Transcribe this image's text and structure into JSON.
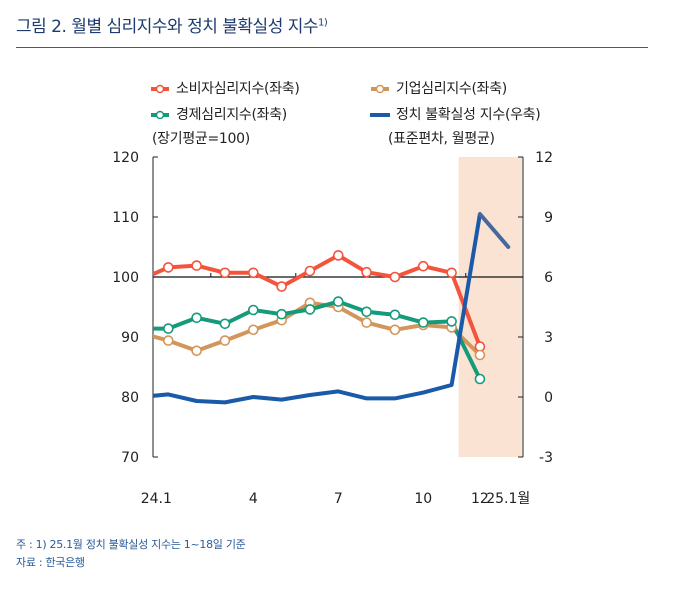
{
  "title": "그림 2. 월별 심리지수와 정치 불확실성 지수",
  "title_sup": "1)",
  "notes": {
    "note": "주 : 1) 25.1월 정치 불확실성 지수는 1~18일 기준",
    "source": "자료 : 한국은행"
  },
  "legend": {
    "left_unit": "(장기평균=100)",
    "right_unit": "(표준편차, 월평균)"
  },
  "chart_data": {
    "type": "line",
    "title": "월별 심리지수와 정치 불확실성 지수",
    "categories": [
      "23.12",
      "24.1",
      "24.2",
      "24.3",
      "24.4",
      "24.5",
      "24.6",
      "24.7",
      "24.8",
      "24.9",
      "24.10",
      "24.11",
      "24.12",
      "25.1"
    ],
    "x_tick_labels": [
      {
        "category": "24.1",
        "label": "24.1"
      },
      {
        "category": "24.4",
        "label": "4"
      },
      {
        "category": "24.7",
        "label": "7"
      },
      {
        "category": "24.10",
        "label": "10"
      },
      {
        "category": "24.12",
        "label": "12"
      },
      {
        "category": "25.1",
        "label": "25.1월"
      }
    ],
    "y_left": {
      "range": [
        70,
        120
      ],
      "ticks": [
        70,
        80,
        90,
        100,
        110,
        120
      ],
      "reference_line": 100
    },
    "y_right": {
      "range": [
        -3,
        12
      ],
      "ticks": [
        -3,
        0,
        3,
        6,
        9,
        12
      ]
    },
    "shaded_range": [
      "24.12",
      "25.1"
    ],
    "shade_color": "#fbe3d3",
    "series": [
      {
        "name": "소비자심리지수(좌축)",
        "axis": "left",
        "color": "#f4533c",
        "marker": "open-circle",
        "values": [
          99.5,
          101.6,
          101.9,
          100.7,
          100.7,
          98.4,
          101.0,
          103.6,
          100.8,
          100.0,
          101.8,
          100.7,
          88.4,
          null
        ]
      },
      {
        "name": "기업심리지수(좌축)",
        "axis": "left",
        "color": "#d4955a",
        "marker": "open-circle",
        "values": [
          90.7,
          89.4,
          87.7,
          89.4,
          91.2,
          92.8,
          95.7,
          95.0,
          92.4,
          91.2,
          92.0,
          91.6,
          87.0,
          null
        ]
      },
      {
        "name": "경제심리지수(좌축)",
        "axis": "left",
        "color": "#159a7a",
        "marker": "open-circle",
        "values": [
          91.4,
          91.4,
          93.2,
          92.2,
          94.5,
          93.8,
          94.6,
          95.9,
          94.2,
          93.7,
          92.4,
          92.6,
          83.0,
          null
        ]
      },
      {
        "name": "정치 불확실성 지수(우축)",
        "axis": "right",
        "color": "#1a5aa8",
        "last_segment_color": "#48689a",
        "marker": "none",
        "values": [
          0.0,
          0.13,
          -0.2,
          -0.27,
          0.0,
          -0.13,
          0.1,
          0.28,
          -0.07,
          -0.07,
          0.22,
          0.6,
          9.15,
          7.5
        ]
      }
    ]
  }
}
